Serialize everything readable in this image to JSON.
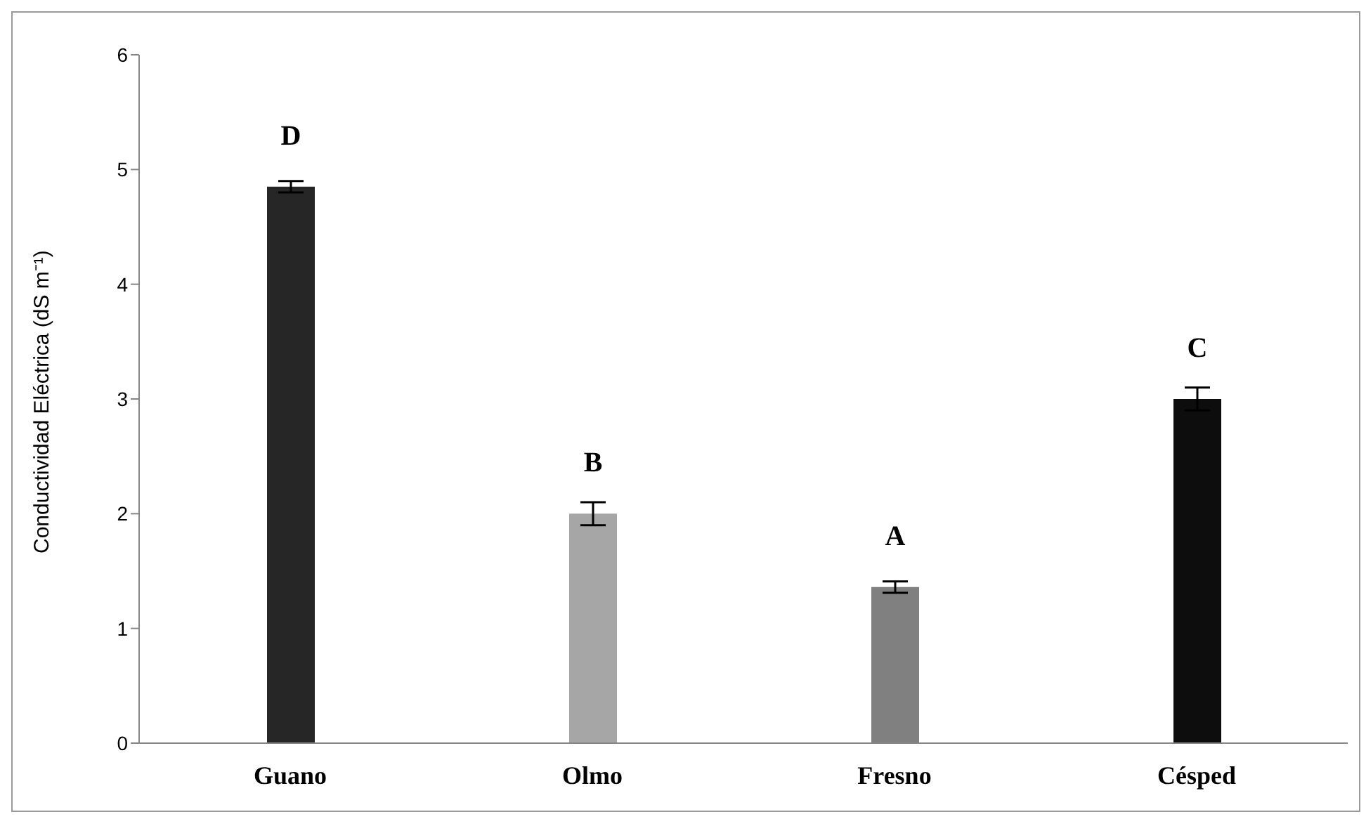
{
  "chart_data": {
    "type": "bar",
    "ylabel": "Conductividad Eléctrica (dS m⁻¹)",
    "categories": [
      "Guano",
      "Olmo",
      "Fresno",
      "Césped"
    ],
    "values": [
      4.85,
      2.0,
      1.36,
      3.0
    ],
    "errors": [
      0.05,
      0.1,
      0.05,
      0.1
    ],
    "colors": [
      "#262626",
      "#a6a6a6",
      "#808080",
      "#0d0d0d"
    ],
    "ylim": [
      0,
      6
    ],
    "yticks": [
      0,
      1,
      2,
      3,
      4,
      5,
      6
    ],
    "grid": false,
    "legend": false,
    "value_labels": [
      "D",
      "B",
      "A",
      "C"
    ]
  }
}
